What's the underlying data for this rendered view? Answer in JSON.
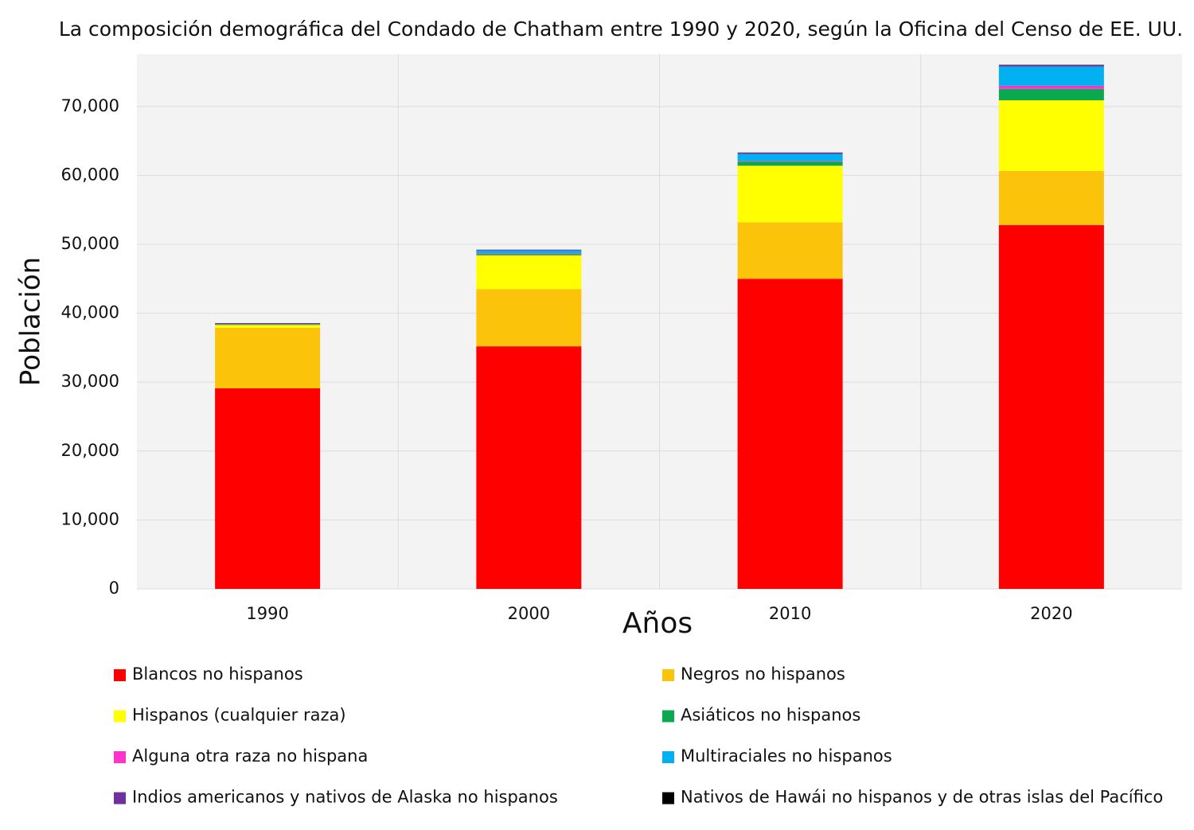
{
  "chart_data": {
    "type": "stacked-bar",
    "title": "La composición demográfica del Condado de Chatham entre 1990 y 2020, según la Oficina del Censo de EE. UU.",
    "xlabel": "Años",
    "ylabel": "Población",
    "categories": [
      "1990",
      "2000",
      "2010",
      "2020"
    ],
    "series": [
      {
        "name": "Blancos no hispanos",
        "color": "#ff0000",
        "values": [
          29100,
          35200,
          45000,
          52800
        ]
      },
      {
        "name": "Negros no hispanos",
        "color": "#fcc30b",
        "values": [
          8800,
          8300,
          8200,
          7850
        ]
      },
      {
        "name": "Hispanos (cualquier raza)",
        "color": "#ffff00",
        "values": [
          400,
          4900,
          8200,
          10250
        ]
      },
      {
        "name": "Asiáticos no hispanos",
        "color": "#0aa84f",
        "values": [
          100,
          200,
          600,
          1650
        ]
      },
      {
        "name": "Alguna otra raza no hispana",
        "color": "#ff33cc",
        "values": [
          50,
          100,
          100,
          450
        ]
      },
      {
        "name": "Multiraciales no hispanos",
        "color": "#00b0f0",
        "values": [
          0,
          400,
          1000,
          2800
        ]
      },
      {
        "name": "Indios americanos y nativos de Alaska no hispanos",
        "color": "#7030a0",
        "values": [
          100,
          100,
          200,
          200
        ]
      },
      {
        "name": "Nativos de Hawái no hispanos y de otras islas del Pacífico",
        "color": "#000000",
        "values": [
          20,
          20,
          20,
          50
        ]
      }
    ],
    "ylim": [
      0,
      77600
    ],
    "yticks": [
      0,
      {
        "value": 10000,
        "label": "10,000"
      },
      {
        "value": 20000,
        "label": "20,000"
      },
      {
        "value": 30000,
        "label": "30,000"
      },
      {
        "value": 40000,
        "label": "40,000"
      },
      {
        "value": 50000,
        "label": "50,000"
      },
      {
        "value": 60000,
        "label": "60,000"
      },
      {
        "value": 70000,
        "label": "70,000"
      }
    ],
    "grid": true
  }
}
